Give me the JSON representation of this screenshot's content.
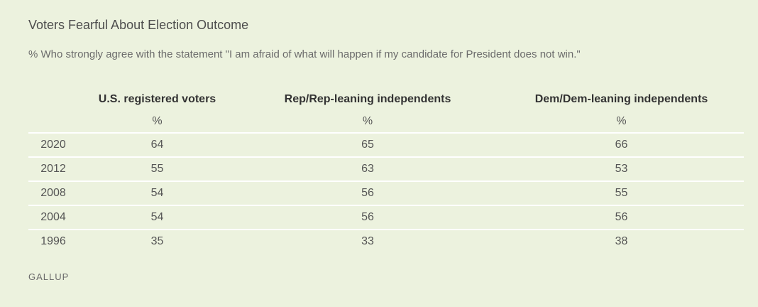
{
  "chart_data": {
    "type": "table",
    "title": "Voters Fearful About Election Outcome",
    "subtitle": "% Who strongly agree with the statement \"I am afraid of what will happen if my candidate for President does not win.\"",
    "columns": [
      "U.S. registered voters",
      "Rep/Rep-leaning independents",
      "Dem/Dem-leaning independents"
    ],
    "units": [
      "%",
      "%",
      "%"
    ],
    "rows": [
      {
        "year": "2020",
        "values": [
          "64",
          "65",
          "66"
        ]
      },
      {
        "year": "2012",
        "values": [
          "55",
          "63",
          "53"
        ]
      },
      {
        "year": "2008",
        "values": [
          "54",
          "56",
          "55"
        ]
      },
      {
        "year": "2004",
        "values": [
          "54",
          "56",
          "56"
        ]
      },
      {
        "year": "1996",
        "values": [
          "35",
          "33",
          "38"
        ]
      }
    ],
    "source": "GALLUP"
  }
}
